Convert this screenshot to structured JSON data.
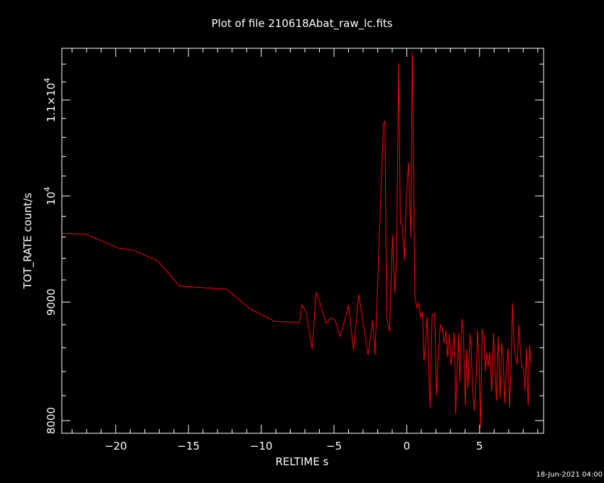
{
  "chart_data": {
    "type": "line",
    "title": "Plot of file 210618Abat_raw_lc.fits",
    "xlabel": "RELTIME  s",
    "ylabel": "TOT_RATE  count/s",
    "xlim": [
      -23.7,
      9.4
    ],
    "ylim": [
      7900,
      11580
    ],
    "yscale": "log",
    "x_ticks": [
      -20,
      -15,
      -10,
      -5,
      0,
      5
    ],
    "x_tick_labels": [
      "−20",
      "−15",
      "−10",
      "−5",
      "0",
      "5"
    ],
    "y_ticks": [
      {
        "value": 8000,
        "mantissa": "8000",
        "exp": ""
      },
      {
        "value": 9000,
        "mantissa": "9000",
        "exp": ""
      },
      {
        "value": 10000,
        "mantissa": "10",
        "exp": "4"
      },
      {
        "value": 11000,
        "mantissa": "1.1×10",
        "exp": "4"
      }
    ],
    "series": [
      {
        "color": "#ff0000",
        "x": [
          -23.66,
          -22.06,
          -19.78,
          -18.76,
          -17.1,
          -15.62,
          -12.36,
          -10.82,
          -9.08,
          -7.38,
          -7.2,
          -6.92,
          -6.5,
          -6.22,
          -5.92,
          -5.54,
          -5.22,
          -4.92,
          -4.6,
          -4.3,
          -4.0,
          -3.66,
          -3.3,
          -2.66,
          -2.34,
          -2.18,
          -1.6,
          -1.5,
          -1.38,
          -1.18,
          -0.98,
          -0.82,
          -0.7,
          -0.56,
          -0.44,
          -0.3,
          -0.16,
          -0.04,
          0.12,
          0.28,
          0.38,
          0.44,
          0.56,
          0.7,
          0.84,
          0.94,
          1.08,
          1.18,
          1.28,
          1.4,
          1.6,
          1.74,
          1.92,
          2.04,
          2.14,
          2.3,
          2.44,
          2.58,
          2.7,
          2.8,
          2.92,
          3.04,
          3.14,
          3.26,
          3.36,
          3.46,
          3.56,
          3.64,
          3.78,
          3.9,
          4.02,
          4.12,
          4.2,
          4.34,
          4.42,
          4.52,
          4.64,
          4.76,
          4.86,
          4.96,
          5.06,
          5.18,
          5.3,
          5.4,
          5.5,
          5.58,
          5.7,
          5.84,
          5.96,
          6.06,
          6.16,
          6.28,
          6.42,
          6.52,
          6.62,
          6.72,
          6.84,
          6.96,
          7.06,
          7.16,
          7.26,
          7.38,
          7.48,
          7.58,
          7.7,
          7.82,
          7.92,
          8.02,
          8.12,
          8.22,
          8.34,
          8.44,
          8.54
        ],
        "y": [
          9635,
          9630,
          9495,
          9475,
          9375,
          9145,
          9115,
          8945,
          8830,
          8820,
          8975,
          8915,
          8590,
          9090,
          8975,
          8810,
          8860,
          8840,
          8700,
          8825,
          8975,
          8580,
          9070,
          8540,
          8840,
          8540,
          10750,
          10770,
          8860,
          8740,
          9620,
          9080,
          9430,
          11410,
          9740,
          9700,
          9380,
          9950,
          10340,
          9590,
          11540,
          10650,
          9050,
          8950,
          8990,
          8870,
          8910,
          8490,
          8620,
          8870,
          8100,
          8880,
          8900,
          8200,
          8480,
          8800,
          8770,
          8640,
          8750,
          8520,
          8720,
          8450,
          8560,
          8730,
          8050,
          8440,
          8720,
          8310,
          8850,
          8720,
          8120,
          8580,
          8260,
          8720,
          8620,
          8260,
          8080,
          8320,
          8750,
          8520,
          7940,
          8760,
          8700,
          8400,
          8560,
          8440,
          8560,
          8240,
          8730,
          8450,
          8160,
          8700,
          8180,
          8640,
          8530,
          8140,
          8420,
          8600,
          8100,
          8400,
          8990,
          8600,
          8520,
          8460,
          8800,
          8540,
          8430,
          8430,
          8240,
          8600,
          8120,
          8620,
          8460
        ]
      }
    ]
  },
  "timestamp": "18-Jun-2021 04:00"
}
